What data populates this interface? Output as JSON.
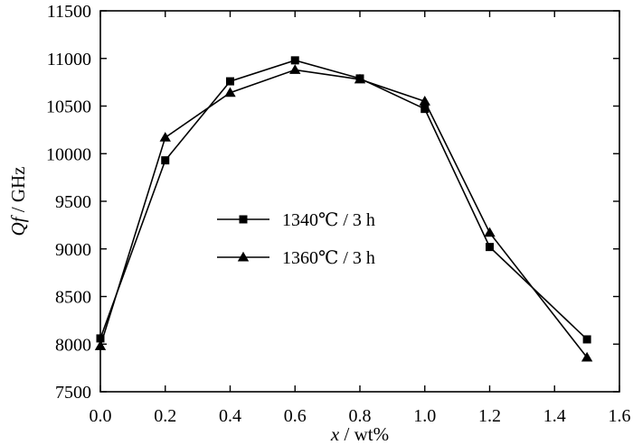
{
  "chart_data": {
    "type": "line",
    "xlabel_var": "x",
    "xlabel_unit": " / wt%",
    "ylabel_var": "Qf",
    "ylabel_unit": " / GHz",
    "xlim": [
      0.0,
      1.6
    ],
    "ylim": [
      7500,
      11500
    ],
    "xticks": [
      "0.0",
      "0.2",
      "0.4",
      "0.6",
      "0.8",
      "1.0",
      "1.2",
      "1.4",
      "1.6"
    ],
    "yticks": [
      "7500",
      "8000",
      "8500",
      "9000",
      "9500",
      "10000",
      "10500",
      "11000",
      "11500"
    ],
    "grid": false,
    "legend_position": "center-left",
    "series": [
      {
        "name": "1340℃ / 3 h",
        "marker": "square",
        "color": "#000000",
        "x": [
          0.0,
          0.2,
          0.4,
          0.6,
          0.8,
          1.0,
          1.2,
          1.5
        ],
        "y": [
          8060,
          9930,
          10760,
          10980,
          10790,
          10470,
          9020,
          8050
        ]
      },
      {
        "name": "1360℃ / 3 h",
        "marker": "triangle",
        "color": "#000000",
        "x": [
          0.0,
          0.2,
          0.4,
          0.6,
          0.8,
          1.0,
          1.2,
          1.5
        ],
        "y": [
          7980,
          10170,
          10640,
          10880,
          10780,
          10550,
          9170,
          7860
        ]
      }
    ]
  }
}
